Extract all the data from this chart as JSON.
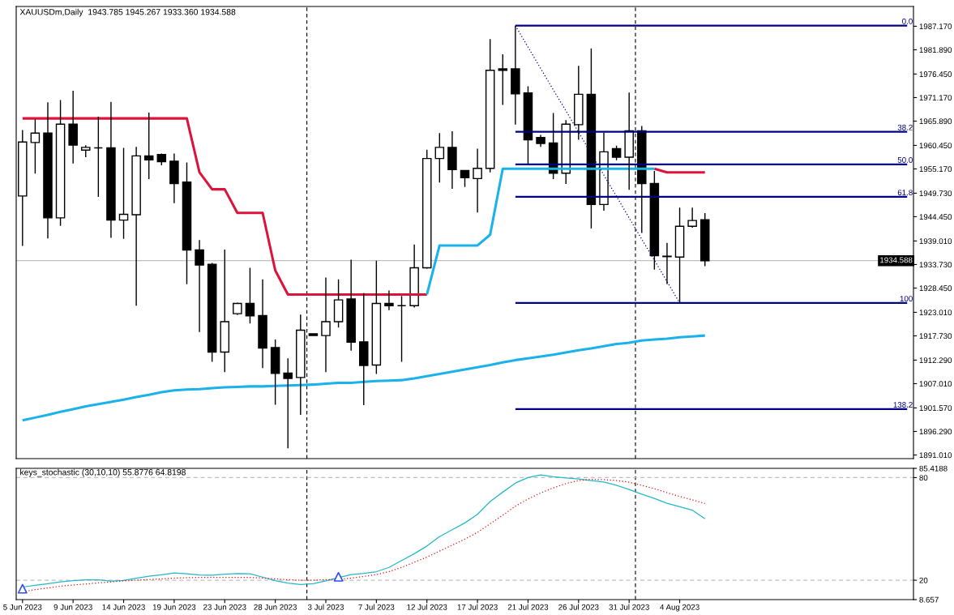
{
  "chart_data": [
    {
      "type": "candlestick",
      "title": "XAUUSDm,Daily  1943.785 1945.267 1933.360 1934.588",
      "tick_labels": "y",
      "categories": [
        null,
        null,
        null,
        null,
        null,
        null,
        null,
        null,
        null,
        null,
        null,
        null,
        null,
        null,
        null,
        null,
        null,
        null,
        null,
        null,
        null,
        null,
        null,
        null,
        null,
        null,
        null,
        null,
        null,
        null,
        null,
        null,
        null,
        null,
        null,
        null,
        null,
        null,
        null,
        null,
        null,
        null,
        null,
        null,
        null,
        null,
        null,
        null,
        null,
        null,
        null,
        null,
        null,
        null,
        null,
        null,
        null,
        null,
        null,
        null,
        null,
        null,
        null,
        null,
        null,
        null,
        null,
        null,
        null,
        null,
        null
      ],
      "ohlc": [
        [
          1949.1,
          1963.9,
          1937.9,
          1961.2
        ],
        [
          1961.1,
          1966.3,
          1954.1,
          1963.2
        ],
        [
          1963.2,
          1970.1,
          1939.6,
          1944.2
        ],
        [
          1944.2,
          1970.6,
          1942.4,
          1965.2
        ],
        [
          1965.2,
          1972.7,
          1956.4,
          1960.5
        ],
        [
          1959.4,
          1960.5,
          1957.8,
          1960.0
        ],
        [
          1959.9,
          1966.9,
          1948.9,
          1959.9
        ],
        [
          1959.9,
          1970.2,
          1939.7,
          1943.7
        ],
        [
          1943.7,
          1959.9,
          1939.5,
          1945.0
        ],
        [
          1944.9,
          1960.1,
          1924.5,
          1958.1
        ],
        [
          1958.1,
          1967.8,
          1952.9,
          1957.2
        ],
        [
          1958.4,
          1958.6,
          1956.0,
          1956.8
        ],
        [
          1956.9,
          1958.6,
          1947.5,
          1951.9
        ],
        [
          1952.2,
          1956.6,
          1929.3,
          1937.0
        ],
        [
          1937.0,
          1939.2,
          1918.6,
          1933.6
        ],
        [
          1933.8,
          1934.1,
          1911.9,
          1914.1
        ],
        [
          1914.1,
          1937.1,
          1909.6,
          1920.9
        ],
        [
          1922.7,
          1925.2,
          1922.4,
          1925.0
        ],
        [
          1925.0,
          1933.0,
          1920.5,
          1922.2
        ],
        [
          1922.3,
          1930.4,
          1910.5,
          1915.0
        ],
        [
          1915.1,
          1916.9,
          1902.3,
          1909.3
        ],
        [
          1909.4,
          1912.7,
          1892.5,
          1908.2
        ],
        [
          1908.4,
          1922.5,
          1900.0,
          1919.0
        ],
        [
          1918.2,
          1918.2,
          1917.8,
          1917.8
        ],
        [
          1917.8,
          1930.8,
          1909.6,
          1920.9
        ],
        [
          1920.9,
          1930.4,
          1919.6,
          1925.8
        ],
        [
          1926.0,
          1934.8,
          1914.4,
          1916.3
        ],
        [
          1916.4,
          1927.3,
          1902.2,
          1911.1
        ],
        [
          1911.2,
          1934.6,
          1909.2,
          1925.0
        ],
        [
          1925.0,
          1927.9,
          1923.5,
          1924.5
        ],
        [
          1924.5,
          1926.7,
          1911.9,
          1924.5
        ],
        [
          1924.5,
          1938.2,
          1924.1,
          1933.0
        ],
        [
          1933.0,
          1959.5,
          1932.8,
          1957.5
        ],
        [
          1957.5,
          1963.2,
          1952.1,
          1960.0
        ],
        [
          1960.0,
          1963.6,
          1950.7,
          1955.0
        ],
        [
          1954.8,
          1954.9,
          1951.1,
          1953.2
        ],
        [
          1953.0,
          1959.7,
          1945.4,
          1955.3
        ],
        [
          1955.3,
          1984.3,
          1954.4,
          1977.3
        ],
        [
          1977.6,
          1980.9,
          1969.5,
          1977.3
        ],
        [
          1977.6,
          1987.3,
          1965.1,
          1972.0
        ],
        [
          1972.2,
          1973.7,
          1956.3,
          1961.7
        ],
        [
          1962.2,
          1962.8,
          1960.1,
          1960.9
        ],
        [
          1961.0,
          1967.7,
          1952.9,
          1954.2
        ],
        [
          1954.2,
          1966.1,
          1951.8,
          1965.2
        ],
        [
          1965.1,
          1978.3,
          1961.7,
          1971.9
        ],
        [
          1971.9,
          1982.2,
          1941.8,
          1947.2
        ],
        [
          1947.2,
          1963.3,
          1945.8,
          1959.0
        ],
        [
          1959.7,
          1960.4,
          1957.1,
          1957.8
        ],
        [
          1957.8,
          1972.3,
          1950.5,
          1963.7
        ],
        [
          1963.7,
          1964.8,
          1940.8,
          1951.9
        ],
        [
          1951.9,
          1954.7,
          1932.6,
          1935.7
        ],
        [
          1935.6,
          1938.6,
          1929.3,
          1935.5
        ],
        [
          1935.4,
          1946.5,
          1925.1,
          1942.3
        ],
        [
          1942.3,
          1946.5,
          1942.0,
          1943.6
        ],
        [
          1943.785,
          1945.267,
          1933.36,
          1934.588
        ],
        null,
        null,
        null,
        null,
        null,
        null,
        null,
        null,
        null,
        null,
        null,
        null,
        null,
        null,
        null,
        null
      ],
      "colors": [
        "#ffffff",
        "#ffffff",
        "#000000",
        "#ffffff",
        "#000000",
        "#ffffff",
        "#000000",
        "#000000",
        "#ffffff",
        "#ffffff",
        "#000000",
        "#000000",
        "#000000",
        "#000000",
        "#000000",
        "#000000",
        "#ffffff",
        "#ffffff",
        "#000000",
        "#000000",
        "#000000",
        "#000000",
        "#ffffff",
        "#000000",
        "#ffffff",
        "#ffffff",
        "#000000",
        "#000000",
        "#ffffff",
        "#000000",
        "#000000",
        "#ffffff",
        "#ffffff",
        "#ffffff",
        "#000000",
        "#000000",
        "#ffffff",
        "#ffffff",
        "#000000",
        "#000000",
        "#000000",
        "#000000",
        "#000000",
        "#ffffff",
        "#ffffff",
        "#000000",
        "#ffffff",
        "#000000",
        "#ffffff",
        "#000000",
        "#000000",
        "#000000",
        "#ffffff",
        "#ffffff",
        "#000000",
        null,
        null,
        null,
        null,
        null,
        null,
        null,
        null,
        null,
        null,
        null,
        null,
        null,
        null,
        null,
        null
      ],
      "series": [
        {
          "type": "line",
          "color": "#dc143c",
          "values": [
            1966.5,
            1966.5,
            1966.5,
            1966.5,
            1966.5,
            1966.5,
            1966.5,
            1966.5,
            1966.5,
            1966.5,
            1966.5,
            1966.5,
            1966.5,
            1966.5,
            1954.4,
            1950.6,
            1950.6,
            1945.3,
            1945.3,
            1945.3,
            1932.4,
            1927.0,
            1927.0,
            1927.0,
            1927.0,
            1927.0,
            1927.0,
            1927.0,
            1927.0,
            1927.0,
            1927.0,
            1927.0,
            1927.0,
            null,
            null,
            null,
            null,
            null,
            null,
            null,
            null,
            null,
            null,
            null,
            null,
            null,
            null,
            null,
            null,
            null,
            1955.2,
            1954.4,
            1954.4,
            1954.4,
            1954.4,
            null,
            null,
            null,
            null,
            null,
            null,
            null,
            null,
            null,
            null,
            null,
            null,
            null,
            null,
            null,
            null
          ]
        },
        {
          "type": "line",
          "color": "#1ab2ea",
          "values": [
            null,
            null,
            null,
            null,
            null,
            null,
            null,
            null,
            null,
            null,
            null,
            null,
            null,
            null,
            null,
            null,
            null,
            null,
            null,
            null,
            null,
            null,
            null,
            null,
            null,
            null,
            null,
            null,
            null,
            null,
            null,
            null,
            1927.0,
            1938.0,
            1938.0,
            1938.0,
            1938.0,
            1940.4,
            1955.2,
            1955.2,
            1955.2,
            1955.2,
            1955.2,
            1955.2,
            1955.2,
            1955.2,
            1955.2,
            1955.2,
            1955.2,
            1955.2,
            1955.2,
            null,
            null,
            null,
            null,
            null,
            null,
            null,
            null,
            null,
            null,
            null,
            null,
            null,
            null,
            null,
            null,
            null,
            null,
            null,
            null
          ]
        },
        {
          "type": "line",
          "color": "#1ab2ea",
          "values": [
            1898.8,
            1899.4,
            1900.0,
            1900.7,
            1901.3,
            1901.9,
            1902.4,
            1902.9,
            1903.4,
            1904.0,
            1904.5,
            1905.1,
            1905.5,
            1905.7,
            1905.8,
            1906.0,
            1906.2,
            1906.3,
            1906.4,
            1906.4,
            1906.5,
            1906.6,
            1906.7,
            1906.8,
            1907.0,
            1907.2,
            1907.2,
            1907.4,
            1907.6,
            1907.7,
            1907.8,
            1908.2,
            1908.7,
            1909.2,
            1909.7,
            1910.2,
            1910.7,
            1911.2,
            1911.8,
            1912.3,
            1912.7,
            1913.1,
            1913.5,
            1914.0,
            1914.5,
            1914.9,
            1915.4,
            1915.9,
            1916.2,
            1916.7,
            1916.9,
            1917.1,
            1917.4,
            1917.6,
            1917.8,
            null,
            null,
            null,
            null,
            null,
            null,
            null,
            null,
            null,
            null,
            null,
            null,
            null,
            null,
            null,
            null
          ]
        },
        {
          "type": "line",
          "color": "#000080",
          "line_style": "dotted",
          "values": [
            null,
            null,
            null,
            null,
            null,
            null,
            null,
            null,
            null,
            null,
            null,
            null,
            null,
            null,
            null,
            null,
            null,
            null,
            null,
            null,
            null,
            null,
            null,
            null,
            null,
            null,
            null,
            null,
            null,
            null,
            null,
            null,
            null,
            null,
            null,
            null,
            null,
            null,
            null,
            1987.3,
            1982.5,
            1977.7,
            1972.9,
            1968.2,
            1963.4,
            1958.6,
            1953.8,
            1949.0,
            1944.2,
            1939.4,
            1934.7,
            1929.9,
            1925.1,
            null,
            null,
            null,
            null,
            null,
            null,
            null,
            null,
            null,
            null,
            null,
            null,
            null,
            null,
            null,
            null,
            null,
            null
          ]
        },
        {
          "type": "line",
          "name": "0.0",
          "color": "#000080",
          "values": [
            null,
            null,
            null,
            null,
            null,
            null,
            null,
            null,
            null,
            null,
            null,
            null,
            null,
            null,
            null,
            null,
            null,
            null,
            null,
            null,
            null,
            null,
            null,
            null,
            null,
            null,
            null,
            null,
            null,
            null,
            null,
            null,
            null,
            null,
            null,
            null,
            null,
            null,
            null,
            1987.3,
            1987.3,
            1987.3,
            1987.3,
            1987.3,
            1987.3,
            1987.3,
            1987.3,
            1987.3,
            1987.3,
            1987.3,
            1987.3,
            1987.3,
            1987.3,
            1987.3,
            1987.3,
            1987.3,
            1987.3,
            1987.3,
            1987.3,
            1987.3,
            1987.3,
            1987.3,
            1987.3,
            1987.3,
            1987.3,
            1987.3,
            1987.3,
            1987.3,
            1987.3,
            1987.3,
            1987.3
          ]
        },
        {
          "type": "line",
          "name": "38.2",
          "color": "#000080",
          "values": [
            null,
            null,
            null,
            null,
            null,
            null,
            null,
            null,
            null,
            null,
            null,
            null,
            null,
            null,
            null,
            null,
            null,
            null,
            null,
            null,
            null,
            null,
            null,
            null,
            null,
            null,
            null,
            null,
            null,
            null,
            null,
            null,
            null,
            null,
            null,
            null,
            null,
            null,
            null,
            1963.5,
            1963.5,
            1963.5,
            1963.5,
            1963.5,
            1963.5,
            1963.5,
            1963.5,
            1963.5,
            1963.5,
            1963.5,
            1963.5,
            1963.5,
            1963.5,
            1963.5,
            1963.5,
            1963.5,
            1963.5,
            1963.5,
            1963.5,
            1963.5,
            1963.5,
            1963.5,
            1963.5,
            1963.5,
            1963.5,
            1963.5,
            1963.5,
            1963.5,
            1963.5,
            1963.5,
            1963.5
          ]
        },
        {
          "type": "line",
          "name": "50.0",
          "color": "#000080",
          "values": [
            null,
            null,
            null,
            null,
            null,
            null,
            null,
            null,
            null,
            null,
            null,
            null,
            null,
            null,
            null,
            null,
            null,
            null,
            null,
            null,
            null,
            null,
            null,
            null,
            null,
            null,
            null,
            null,
            null,
            null,
            null,
            null,
            null,
            null,
            null,
            null,
            null,
            null,
            null,
            1956.2,
            1956.2,
            1956.2,
            1956.2,
            1956.2,
            1956.2,
            1956.2,
            1956.2,
            1956.2,
            1956.2,
            1956.2,
            1956.2,
            1956.2,
            1956.2,
            1956.2,
            1956.2,
            1956.2,
            1956.2,
            1956.2,
            1956.2,
            1956.2,
            1956.2,
            1956.2,
            1956.2,
            1956.2,
            1956.2,
            1956.2,
            1956.2,
            1956.2,
            1956.2,
            1956.2,
            1956.2
          ]
        },
        {
          "type": "line",
          "name": "61.8",
          "color": "#000080",
          "values": [
            null,
            null,
            null,
            null,
            null,
            null,
            null,
            null,
            null,
            null,
            null,
            null,
            null,
            null,
            null,
            null,
            null,
            null,
            null,
            null,
            null,
            null,
            null,
            null,
            null,
            null,
            null,
            null,
            null,
            null,
            null,
            null,
            null,
            null,
            null,
            null,
            null,
            null,
            null,
            1948.9,
            1948.9,
            1948.9,
            1948.9,
            1948.9,
            1948.9,
            1948.9,
            1948.9,
            1948.9,
            1948.9,
            1948.9,
            1948.9,
            1948.9,
            1948.9,
            1948.9,
            1948.9,
            1948.9,
            1948.9,
            1948.9,
            1948.9,
            1948.9,
            1948.9,
            1948.9,
            1948.9,
            1948.9,
            1948.9,
            1948.9,
            1948.9,
            1948.9,
            1948.9,
            1948.9,
            1948.9
          ]
        },
        {
          "type": "line",
          "name": "100",
          "color": "#000080",
          "values": [
            null,
            null,
            null,
            null,
            null,
            null,
            null,
            null,
            null,
            null,
            null,
            null,
            null,
            null,
            null,
            null,
            null,
            null,
            null,
            null,
            null,
            null,
            null,
            null,
            null,
            null,
            null,
            null,
            null,
            null,
            null,
            null,
            null,
            null,
            null,
            null,
            null,
            null,
            null,
            1925.1,
            1925.1,
            1925.1,
            1925.1,
            1925.1,
            1925.1,
            1925.1,
            1925.1,
            1925.1,
            1925.1,
            1925.1,
            1925.1,
            1925.1,
            1925.1,
            1925.1,
            1925.1,
            1925.1,
            1925.1,
            1925.1,
            1925.1,
            1925.1,
            1925.1,
            1925.1,
            1925.1,
            1925.1,
            1925.1,
            1925.1,
            1925.1,
            1925.1,
            1925.1,
            1925.1,
            1925.1
          ]
        },
        {
          "type": "line",
          "name": "138.2",
          "color": "#000080",
          "values": [
            null,
            null,
            null,
            null,
            null,
            null,
            null,
            null,
            null,
            null,
            null,
            null,
            null,
            null,
            null,
            null,
            null,
            null,
            null,
            null,
            null,
            null,
            null,
            null,
            null,
            null,
            null,
            null,
            null,
            null,
            null,
            null,
            null,
            null,
            null,
            null,
            null,
            null,
            null,
            1901.3,
            1901.3,
            1901.3,
            1901.3,
            1901.3,
            1901.3,
            1901.3,
            1901.3,
            1901.3,
            1901.3,
            1901.3,
            1901.3,
            1901.3,
            1901.3,
            1901.3,
            1901.3,
            1901.3,
            1901.3,
            1901.3,
            1901.3,
            1901.3,
            1901.3,
            1901.3,
            1901.3,
            1901.3,
            1901.3,
            1901.3,
            1901.3,
            1901.3,
            1901.3,
            1901.3,
            1901.3
          ]
        }
      ],
      "ylim": [
        1890.2,
        1991.6
      ],
      "yticks": [
        {
          "value": 1987.17,
          "label": "1987.170"
        },
        {
          "value": 1981.89,
          "label": "1981.890"
        },
        {
          "value": 1976.45,
          "label": "1976.450"
        },
        {
          "value": 1971.17,
          "label": "1971.170"
        },
        {
          "value": 1965.89,
          "label": "1965.890"
        },
        {
          "value": 1960.45,
          "label": "1960.450"
        },
        {
          "value": 1955.17,
          "label": "1955.170"
        },
        {
          "value": 1949.73,
          "label": "1949.730"
        },
        {
          "value": 1944.45,
          "label": "1944.450"
        },
        {
          "value": 1939.01,
          "label": "1939.010"
        },
        {
          "value": 1933.73,
          "label": "1933.730"
        },
        {
          "value": 1928.45,
          "label": "1928.450"
        },
        {
          "value": 1923.01,
          "label": "1923.010"
        },
        {
          "value": 1917.73,
          "label": "1917.730"
        },
        {
          "value": 1912.29,
          "label": "1912.290"
        },
        {
          "value": 1907.01,
          "label": "1907.010"
        },
        {
          "value": 1901.57,
          "label": "1901.570"
        },
        {
          "value": 1896.29,
          "label": "1896.290"
        },
        {
          "value": 1891.01,
          "label": "1891.010"
        }
      ],
      "ref_lines": [
        {
          "axis": "y",
          "value": 1934.588,
          "label": "1934.588",
          "color": "#c0c0c0"
        }
      ]
    },
    {
      "type": "line",
      "title": "keys_stochastic (30,10,10) 55.8776 64.8198",
      "categories": [
        "5 Jun 2023",
        null,
        null,
        null,
        "9 Jun 2023",
        null,
        null,
        null,
        "14 Jun 2023",
        null,
        null,
        null,
        "19 Jun 2023",
        null,
        null,
        null,
        "23 Jun 2023",
        null,
        null,
        null,
        "28 Jun 2023",
        null,
        null,
        null,
        "3 Jul 2023",
        null,
        null,
        null,
        "7 Jul 2023",
        null,
        null,
        null,
        "12 Jul 2023",
        null,
        null,
        null,
        "17 Jul 2023",
        null,
        null,
        null,
        "21 Jul 2023",
        null,
        null,
        null,
        "26 Jul 2023",
        null,
        null,
        null,
        "31 Jul 2023",
        null,
        null,
        null,
        "4 Aug 2023",
        null,
        null,
        null,
        null,
        null,
        null,
        null,
        null,
        null,
        null,
        null,
        null,
        null,
        null,
        null,
        null,
        null,
        null
      ],
      "series": [
        {
          "type": "line",
          "color": "#22b8c8",
          "values": [
            16.0,
            17.0,
            18.0,
            19.0,
            19.7,
            20.2,
            20.2,
            19.5,
            19.8,
            21.2,
            22.3,
            23.2,
            24.2,
            23.8,
            23.0,
            22.9,
            23.5,
            23.9,
            23.8,
            21.8,
            19.7,
            18.3,
            17.5,
            18.0,
            19.6,
            21.5,
            23.3,
            24.0,
            25.0,
            27.5,
            31.5,
            35.5,
            40.0,
            45.5,
            49.5,
            53.5,
            58.5,
            66.0,
            71.5,
            76.8,
            80.0,
            81.6,
            80.5,
            79.8,
            79.2,
            78.3,
            77.4,
            75.5,
            73.0,
            70.3,
            67.8,
            65.0,
            63.0,
            61.0,
            55.8776,
            null,
            null,
            null,
            null,
            null,
            null,
            null,
            null,
            null,
            null,
            null,
            null,
            null,
            null,
            null,
            null
          ]
        },
        {
          "type": "line",
          "color": "#dd1111",
          "line_style": "dotted",
          "values": [
            13.3,
            14.5,
            15.5,
            16.5,
            17.2,
            17.8,
            18.4,
            19.0,
            19.6,
            20.0,
            20.4,
            20.8,
            21.2,
            21.5,
            21.6,
            21.7,
            21.6,
            21.6,
            21.6,
            21.3,
            20.8,
            20.3,
            20.0,
            20.0,
            20.3,
            20.6,
            21.2,
            22.2,
            23.3,
            25.0,
            27.5,
            30.5,
            33.5,
            37.0,
            40.5,
            44.0,
            48.0,
            53.0,
            58.0,
            63.3,
            67.5,
            71.0,
            74.0,
            76.5,
            78.3,
            79.0,
            78.8,
            78.3,
            77.3,
            75.5,
            73.5,
            71.2,
            69.0,
            67.0,
            64.8198,
            null,
            null,
            null,
            null,
            null,
            null,
            null,
            null,
            null,
            null,
            null,
            null,
            null,
            null,
            null,
            null
          ]
        },
        {
          "type": "scatter",
          "color": "#3050f0",
          "marker": "triangle",
          "values": [
            15.0,
            null,
            null,
            null,
            null,
            null,
            null,
            null,
            null,
            null,
            null,
            null,
            null,
            null,
            null,
            null,
            null,
            null,
            null,
            null,
            null,
            null,
            null,
            null,
            null,
            22.0,
            null,
            null,
            null,
            null,
            null,
            null,
            null,
            null,
            null,
            null,
            null,
            null,
            null,
            null,
            null,
            null,
            null,
            null,
            null,
            null,
            null,
            null,
            null,
            null,
            null,
            null,
            null,
            null,
            null,
            null,
            null,
            null,
            null,
            null,
            null,
            null,
            null,
            null,
            null,
            null,
            null,
            null,
            null,
            null,
            null
          ]
        }
      ],
      "ylim": [
        8.657,
        85.4188
      ],
      "yticks": [
        85.4188,
        80,
        20,
        8.657
      ],
      "ref_lines": [
        {
          "axis": "y",
          "value": 80,
          "color": "#c0c0c0",
          "line_style": "dashed"
        },
        {
          "axis": "y",
          "value": 20,
          "color": "#c0c0c0",
          "line_style": "dashed"
        }
      ]
    }
  ]
}
